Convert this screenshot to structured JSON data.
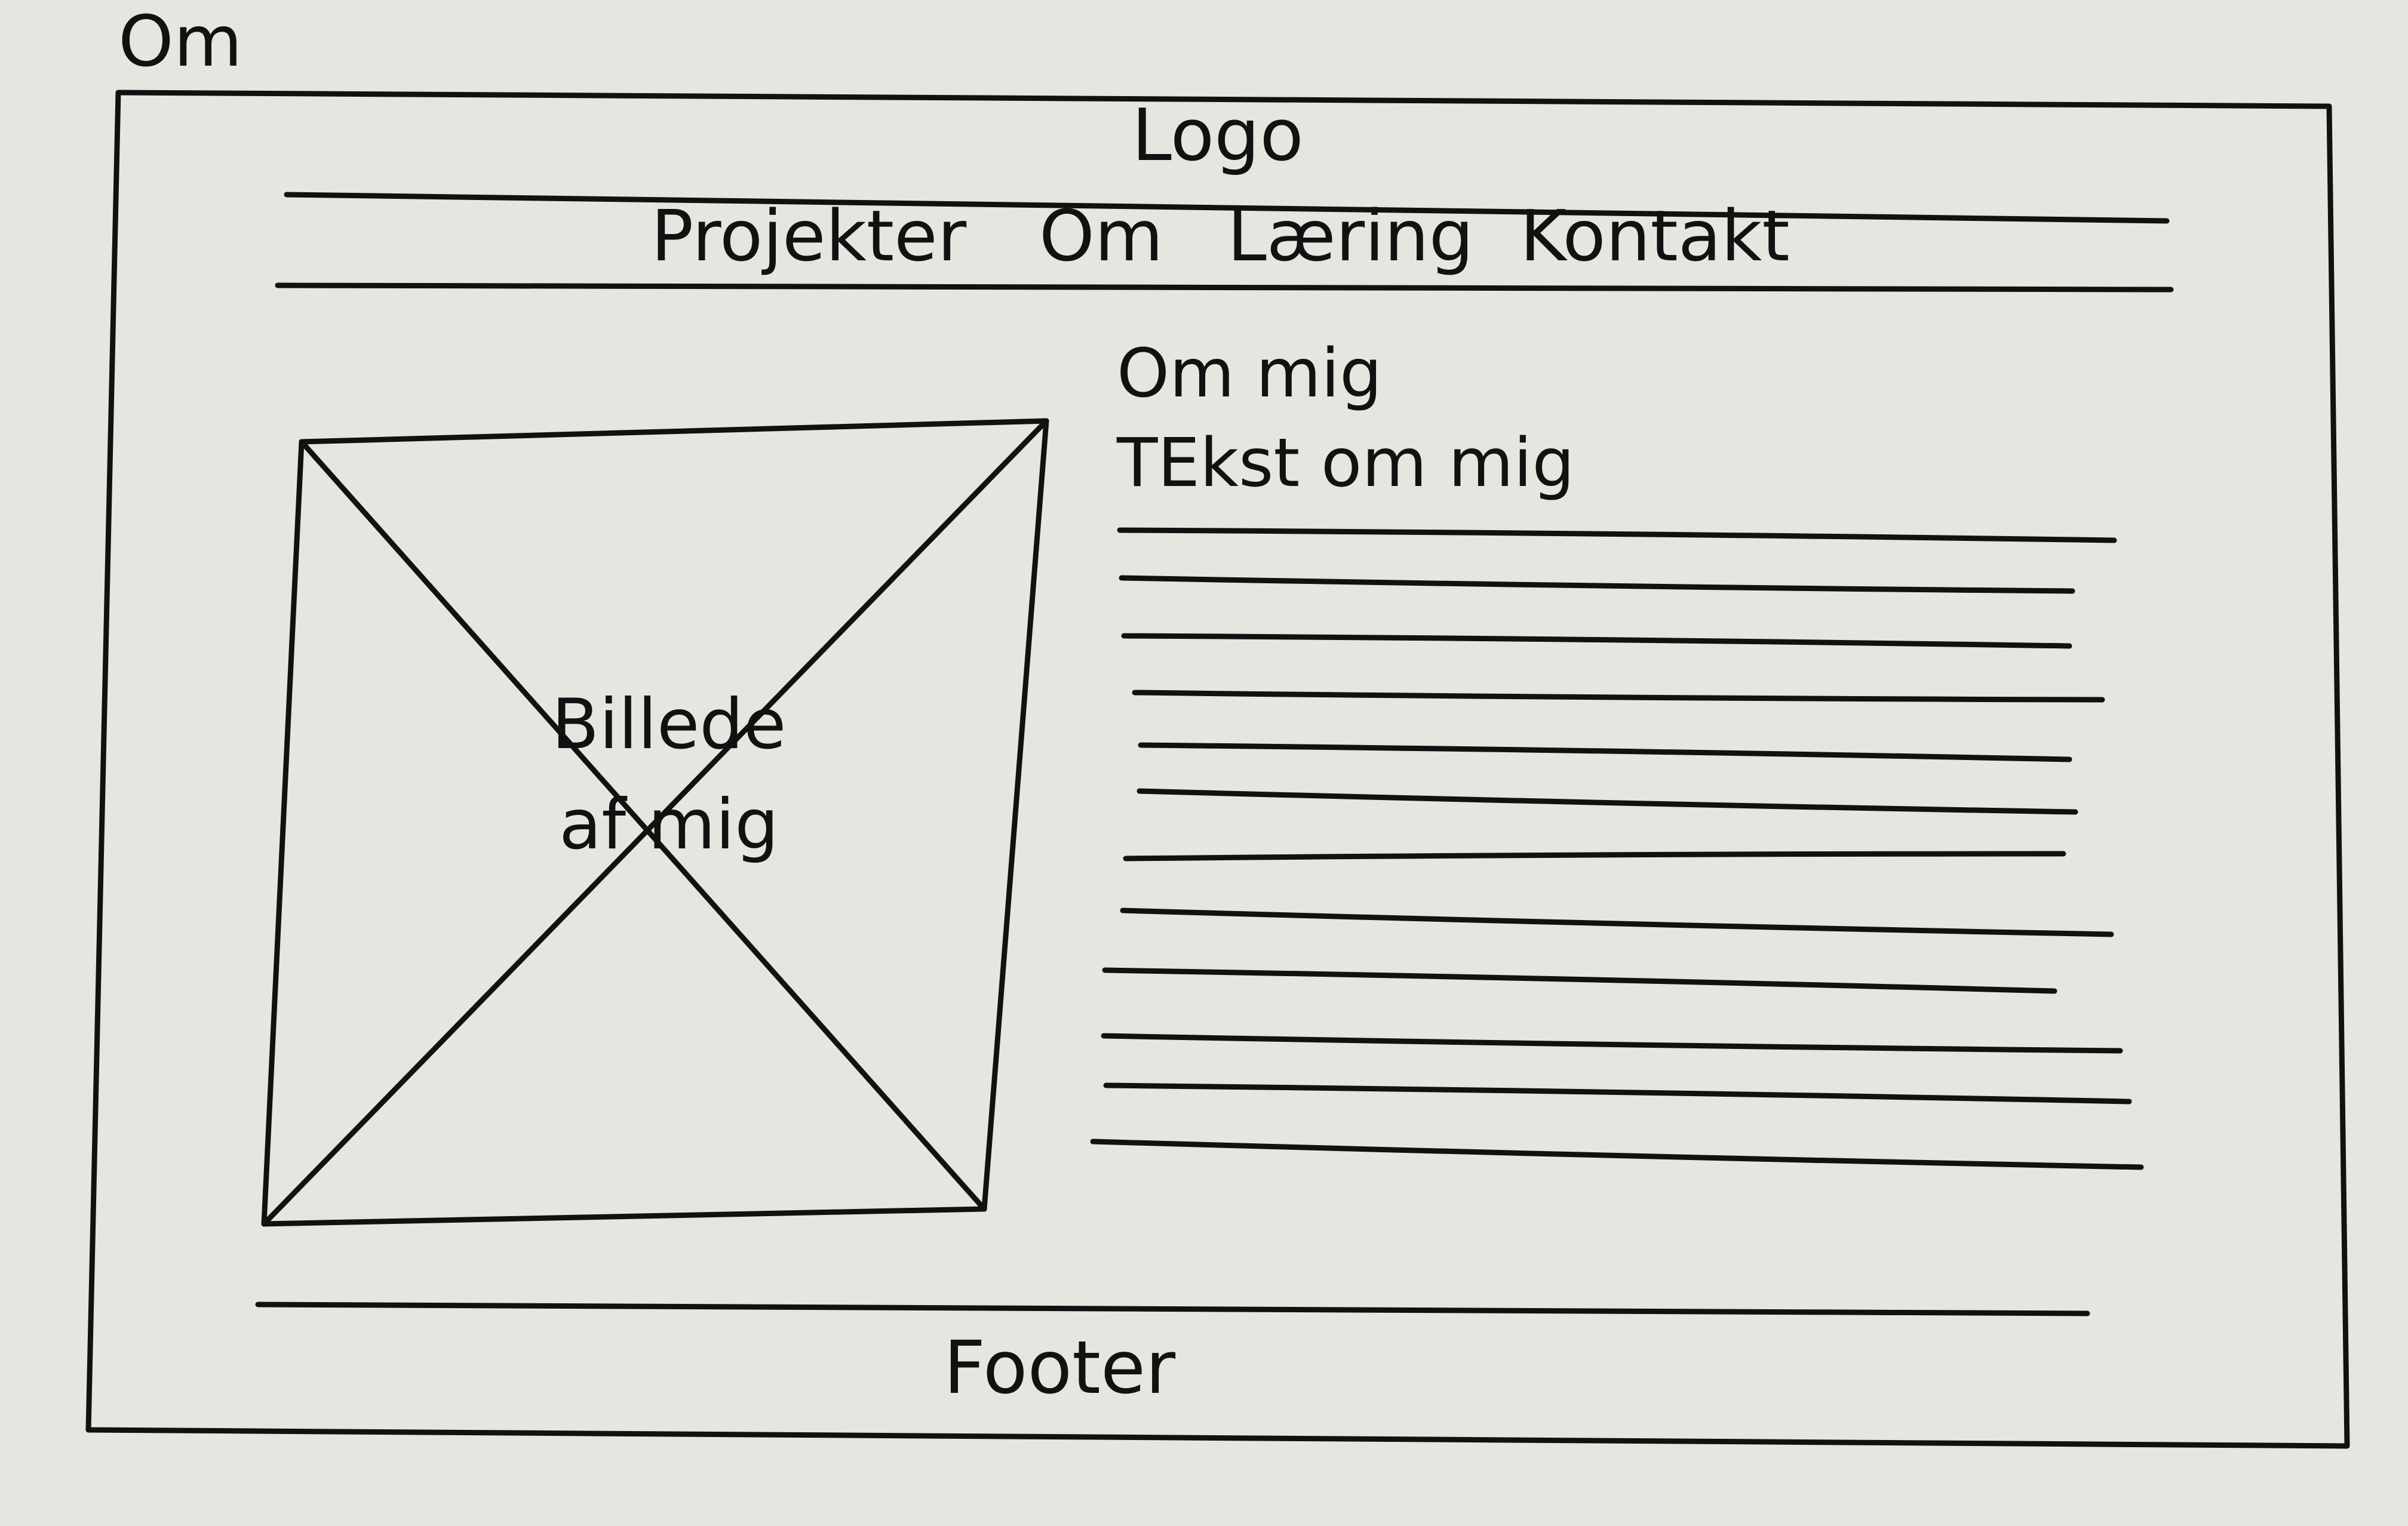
{
  "page_label": "Om",
  "header": {
    "logo": "Logo"
  },
  "nav": {
    "items": [
      "Projekter",
      "Om",
      "Læring",
      "Kontakt"
    ]
  },
  "about": {
    "heading": "Om mig",
    "text": "TEkst om mig",
    "text_line_count": 12
  },
  "image_placeholder": {
    "caption": "Billede af mig"
  },
  "footer": {
    "label": "Footer"
  },
  "colors": {
    "ink": "#111111",
    "paper": "#e6e5e0"
  }
}
